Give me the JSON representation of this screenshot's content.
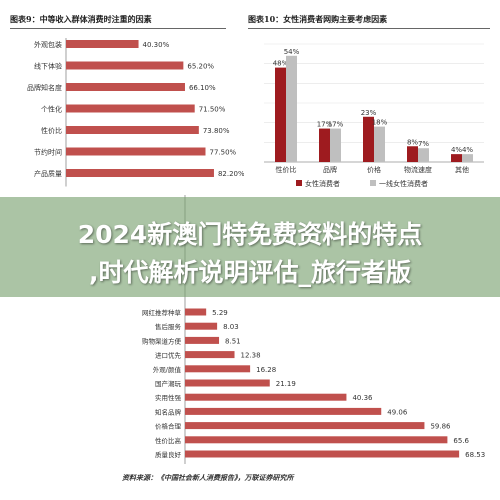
{
  "colors": {
    "bar_red": "#c0504d",
    "bar_darkred": "#9e1b1f",
    "bar_gray": "#bfbfbf",
    "banner_bg": "#78a06e"
  },
  "panel1": {
    "title": "图表9：中等收入群体消费时注重的因素"
  },
  "panel2": {
    "title": "图表10：女性消费者网购主要考虑因素"
  },
  "panel3": {
    "source": "资料来源：《中国社会新人消费报告》，万联证券研究所"
  },
  "banner": {
    "line1": "2024新澳门特免费资料的特点",
    "line2": ",时代解析说明评估_旅行者版"
  },
  "chart_data": [
    {
      "type": "bar",
      "orientation": "horizontal",
      "title": "图表9：中等收入群体消费时注重的因素",
      "categories": [
        "外观包装",
        "线下体验",
        "品牌知名度",
        "个性化",
        "性价比",
        "节约时间",
        "产品质量"
      ],
      "values": [
        40.3,
        65.2,
        66.1,
        71.5,
        73.8,
        77.5,
        82.2
      ],
      "value_labels": [
        "40.30%",
        "65.20%",
        "66.10%",
        "71.50%",
        "73.80%",
        "77.50%",
        "82.20%"
      ],
      "xlim": [
        0,
        100
      ],
      "grid": false
    },
    {
      "type": "bar",
      "orientation": "vertical",
      "title": "图表10：女性消费者网购主要考虑因素",
      "categories": [
        "性价比",
        "品牌",
        "价格",
        "物流速度",
        "其他"
      ],
      "series": [
        {
          "name": "女性消费者",
          "values": [
            48,
            17,
            23,
            8,
            4
          ],
          "labels": [
            "48%",
            "17%",
            "23%",
            "8%",
            "4%"
          ]
        },
        {
          "name": "一线女性消费者",
          "values": [
            54,
            17,
            18,
            7,
            4
          ],
          "labels": [
            "54%",
            "17%",
            "18%",
            "7%",
            "4%"
          ]
        }
      ],
      "ylim": [
        0,
        60
      ],
      "grid": true,
      "legend": "bottom"
    },
    {
      "type": "bar",
      "orientation": "horizontal",
      "title": "",
      "categories": [
        "网红推荐种草",
        "售后服务",
        "购物渠道方便",
        "进口优先",
        "外观/颜值",
        "国产潮玩",
        "实用性强",
        "知名品牌",
        "价格合理",
        "性价比高",
        "质量良好"
      ],
      "values": [
        5.29,
        8.03,
        8.51,
        12.38,
        16.28,
        21.19,
        40.36,
        49.06,
        59.86,
        65.6,
        68.53
      ],
      "value_labels": [
        "5.29",
        "8.03",
        "8.51",
        "12.38",
        "16.28",
        "21.19",
        "40.36",
        "49.06",
        "59.86",
        "65.6",
        "68.53"
      ],
      "xlim": [
        0,
        80
      ],
      "grid": false
    }
  ]
}
